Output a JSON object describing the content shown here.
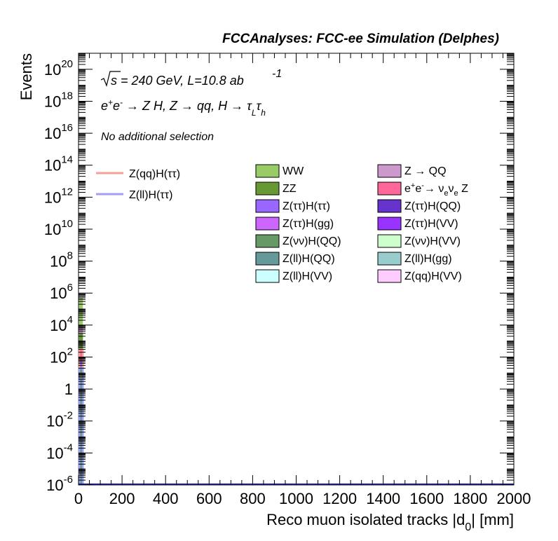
{
  "header": {
    "title": "FCCAnalyses: FCC-ee Simulation (Delphes)"
  },
  "annotations": {
    "sqrt_s": "s = 240 GeV, L=10.8 ab",
    "lumi_exp": "-1",
    "process": "e+e- → Z H, Z → qq, H → τLτh",
    "selection": "No additional selection"
  },
  "legend": {
    "lines": [
      {
        "label": "Z(qq)H(ττ)",
        "color": "#f4a09a"
      },
      {
        "label": "Z(ll)H(ττ)",
        "color": "#9f9ff5"
      }
    ],
    "fills": [
      {
        "label": "WW",
        "color": "#99cc66"
      },
      {
        "label": "Z → QQ",
        "color": "#cc99cc"
      },
      {
        "label": "ZZ",
        "color": "#669933"
      },
      {
        "label": "e+e- → νeνe Z",
        "color": "#ff6699"
      },
      {
        "label": "Z(ττ)H(ττ)",
        "color": "#9966ff"
      },
      {
        "label": "Z(ττ)H(QQ)",
        "color": "#6633cc"
      },
      {
        "label": "Z(ττ)H(gg)",
        "color": "#cc66ff"
      },
      {
        "label": "Z(ττ)H(VV)",
        "color": "#9933ff"
      },
      {
        "label": "Z(νν)H(QQ)",
        "color": "#669966"
      },
      {
        "label": "Z(νν)H(VV)",
        "color": "#ccffcc"
      },
      {
        "label": "Z(ll)H(QQ)",
        "color": "#669999"
      },
      {
        "label": "Z(ll)H(gg)",
        "color": "#99cccc"
      },
      {
        "label": "Z(ll)H(VV)",
        "color": "#ccffff"
      },
      {
        "label": "Z(qq)H(VV)",
        "color": "#ffccff"
      }
    ]
  },
  "chart_data": {
    "type": "bar",
    "title": "",
    "xlabel": "Reco muon isolated tracks |d0| [mm]",
    "ylabel": "Events",
    "xlim": [
      0,
      2000
    ],
    "ylim": [
      1e-06,
      1e+21
    ],
    "log_y": true,
    "x_ticks": [
      "0",
      "200",
      "400",
      "600",
      "800",
      "1000",
      "1200",
      "1400",
      "1600",
      "1800",
      "2000"
    ],
    "y_ticks": [
      {
        "base": "10",
        "exp": "-6"
      },
      {
        "base": "10",
        "exp": "-4"
      },
      {
        "base": "10",
        "exp": "-2"
      },
      {
        "base": "1",
        "exp": ""
      },
      {
        "base": "10",
        "exp": "2"
      },
      {
        "base": "10",
        "exp": "4"
      },
      {
        "base": "10",
        "exp": "6"
      },
      {
        "base": "10",
        "exp": "8"
      },
      {
        "base": "10",
        "exp": "10"
      },
      {
        "base": "10",
        "exp": "12"
      },
      {
        "base": "10",
        "exp": "14"
      },
      {
        "base": "10",
        "exp": "16"
      },
      {
        "base": "10",
        "exp": "18"
      },
      {
        "base": "10",
        "exp": "20"
      }
    ],
    "bin_range": [
      0,
      20
    ],
    "stack": [
      {
        "name": "WW",
        "value": 500000,
        "color": "#99cc66"
      },
      {
        "name": "Z → QQ",
        "value": 8000,
        "color": "#cc99cc"
      },
      {
        "name": "ZZ",
        "value": 3000,
        "color": "#669933"
      },
      {
        "name": "e+e- → νeνe Z",
        "value": 300,
        "color": "#ff6699"
      },
      {
        "name": "Z(ττ)H(ττ)",
        "value": 60,
        "color": "#9966ff"
      },
      {
        "name": "Z(νν)H(QQ)",
        "value": 25,
        "color": "#669966"
      },
      {
        "name": "Z(ll)H(gg)",
        "value": 10,
        "color": "#99cccc"
      },
      {
        "name": "Z(ll)H(QQ)",
        "value": 4,
        "color": "#669999"
      }
    ],
    "signal": [
      {
        "name": "Z(qq)H(ττ)",
        "value": 300,
        "color": "#f4a09a"
      },
      {
        "name": "Z(ll)H(ττ)",
        "value": 20,
        "color": "#9f9ff5"
      }
    ]
  }
}
